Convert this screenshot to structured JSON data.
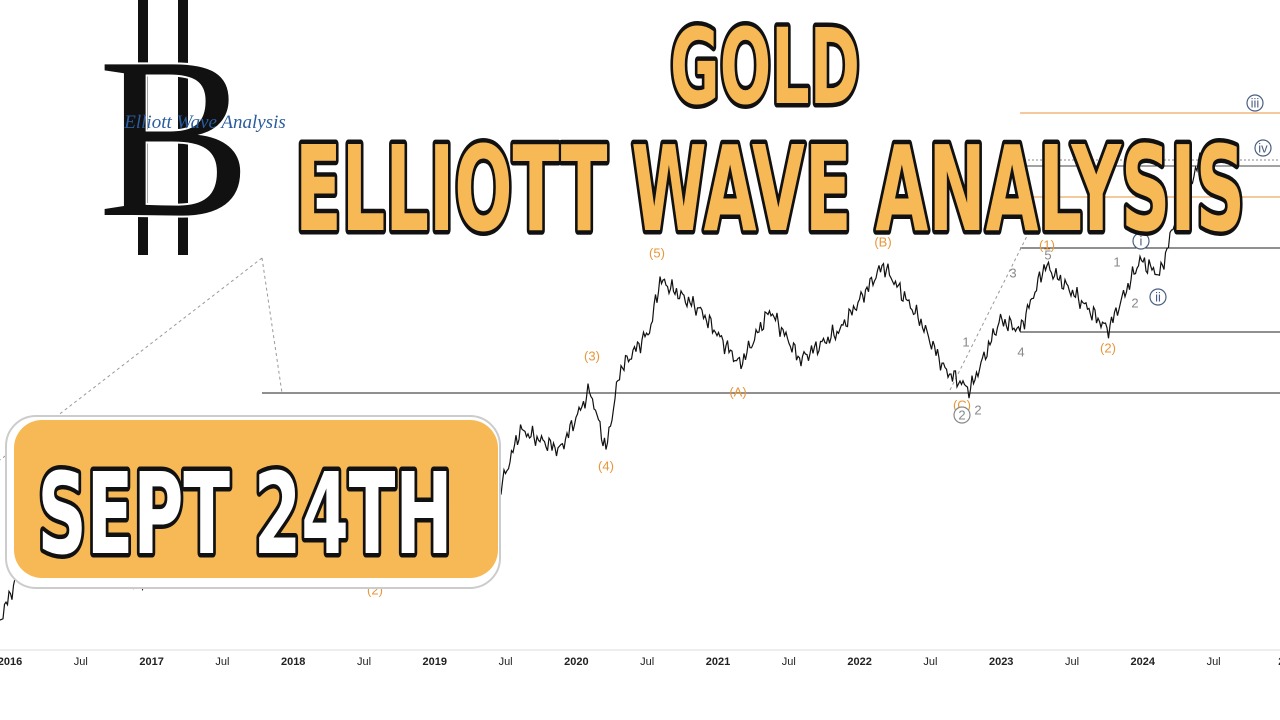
{
  "title": {
    "line1": "GOLD",
    "line2": "ELLIOTT WAVE ANALYSIS"
  },
  "date_badge": "SEPT 24TH",
  "logo_text": "Elliott Wave Analysis",
  "x_axis": [
    "2016",
    "Jul",
    "2017",
    "Jul",
    "2018",
    "Jul",
    "2019",
    "Jul",
    "2020",
    "Jul",
    "2021",
    "Jul",
    "2022",
    "Jul",
    "2023",
    "Jul",
    "2024",
    "Jul",
    "20"
  ],
  "wave_labels": [
    "(3)",
    "(4)",
    "(5)",
    "(A)",
    "(B)",
    "(C)",
    "2",
    "2",
    "(1)",
    "(2)",
    "(2)",
    "1",
    "3",
    "4",
    "5",
    "1",
    "2",
    "i",
    "ii",
    "iii",
    "iv"
  ]
}
